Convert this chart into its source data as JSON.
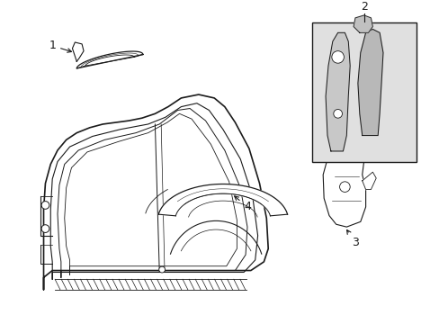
{
  "background_color": "#ffffff",
  "line_color": "#1a1a1a",
  "box2_fill": "#e0e0e0",
  "figsize": [
    4.89,
    3.6
  ],
  "dpi": 100
}
